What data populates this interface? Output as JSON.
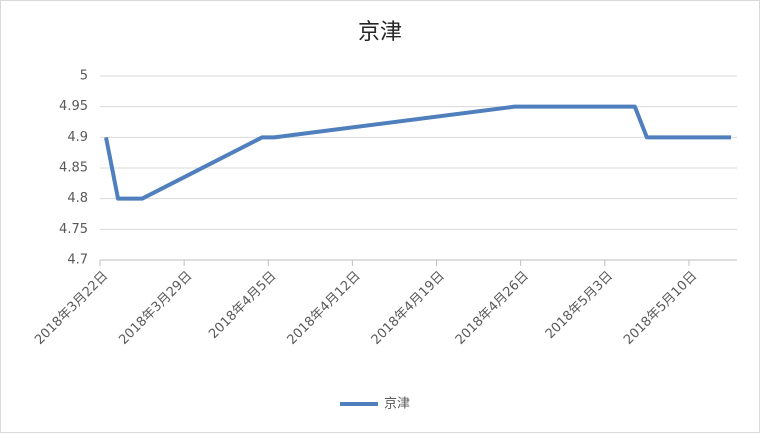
{
  "chart_data": {
    "type": "line",
    "title": "京津",
    "x": [
      "2018-03-22",
      "2018-03-23",
      "2018-03-25",
      "2018-04-04",
      "2018-04-05",
      "2018-04-25",
      "2018-05-05",
      "2018-05-06",
      "2018-05-13"
    ],
    "series": [
      {
        "name": "京津",
        "color": "#4f7fbc",
        "values": [
          4.9,
          4.8,
          4.8,
          4.9,
          4.9,
          4.95,
          4.95,
          4.9,
          4.9
        ]
      }
    ],
    "xlim": [
      "2018-03-22",
      "2018-05-13"
    ],
    "xticks": [
      {
        "value": "2018-03-22",
        "label": "2018年3月22日"
      },
      {
        "value": "2018-03-29",
        "label": "2018年3月29日"
      },
      {
        "value": "2018-04-05",
        "label": "2018年4月5日"
      },
      {
        "value": "2018-04-12",
        "label": "2018年4月12日"
      },
      {
        "value": "2018-04-19",
        "label": "2018年4月19日"
      },
      {
        "value": "2018-04-26",
        "label": "2018年4月26日"
      },
      {
        "value": "2018-05-03",
        "label": "2018年5月3日"
      },
      {
        "value": "2018-05-10",
        "label": "2018年5月10日"
      }
    ],
    "ylim": [
      4.7,
      5
    ],
    "yticks": [
      4.7,
      4.75,
      4.8,
      4.85,
      4.9,
      4.95,
      5
    ],
    "grid": true,
    "legend": "bottom"
  }
}
